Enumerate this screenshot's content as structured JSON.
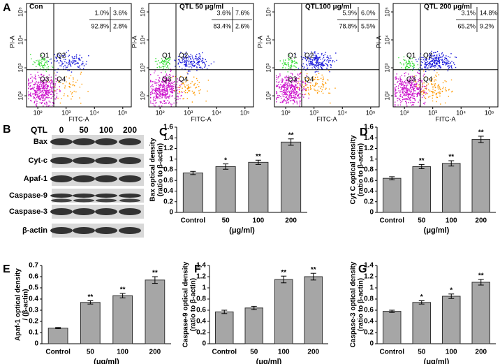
{
  "flow_cytometry": {
    "panel_label": "A",
    "x_label": "FITC-A",
    "y_label": "PI-A",
    "xscale": "log",
    "yscale": "log",
    "xlim": [
      40,
      200000
    ],
    "ylim": [
      40,
      200000
    ],
    "xticks": [
      {
        "value": 100,
        "label": "10²"
      },
      {
        "value": 1000,
        "label": "10³"
      },
      {
        "value": 10000,
        "label": "10⁴"
      },
      {
        "value": 100000,
        "label": "10⁵"
      }
    ],
    "yticks": [
      {
        "value": 100,
        "label": "10²"
      },
      {
        "value": 1000,
        "label": "10³"
      },
      {
        "value": 10000,
        "label": "10⁴"
      },
      {
        "value": 100000,
        "label": "10⁵"
      }
    ],
    "quadrant_names": [
      "Q1",
      "Q2",
      "Q3",
      "Q4"
    ],
    "panels": [
      {
        "title": "Con",
        "percentages": [
          "1.0%",
          "3.6%",
          "92.8%",
          "2.8%"
        ]
      },
      {
        "title": "QTL 50 μg/ml",
        "percentages": [
          "3.6%",
          "7.6%",
          "83.4%",
          "2.6%"
        ]
      },
      {
        "title": "QTL100 μg/ml",
        "percentages": [
          "5.9%",
          "6.0%",
          "78.8%",
          "5.5%"
        ]
      },
      {
        "title": "QTL 200 μg/ml",
        "percentages": [
          "3.1%",
          "14.8%",
          "65.2%",
          "9.2%"
        ]
      }
    ]
  },
  "western_blot": {
    "panel_label": "B",
    "header": "QTL",
    "doses": [
      "0",
      "50",
      "100",
      "200"
    ],
    "proteins": [
      "Bax",
      "Cyt-c",
      "Apaf-1",
      "Caspase-9",
      "Caspase-3",
      "β-actin"
    ]
  },
  "chart_data": [
    {
      "type": "bar",
      "panel_label": "C",
      "y_label": [
        "Bax optical density",
        "(ratio to β-actin)"
      ],
      "x_label": "(μg/ml)",
      "categories": [
        "Control",
        "50",
        "100",
        "200"
      ],
      "values": [
        0.74,
        0.86,
        0.94,
        1.32
      ],
      "errors": [
        0.03,
        0.05,
        0.04,
        0.06
      ],
      "significance": [
        null,
        "*",
        "**",
        "**"
      ],
      "color": "#a6a6a6",
      "ylim": [
        0,
        1.6
      ],
      "yticks": [
        0,
        0.2,
        0.4,
        0.6,
        0.8,
        1,
        1.2,
        1.4,
        1.6
      ]
    },
    {
      "type": "bar",
      "panel_label": "D",
      "y_label": [
        "Cyt C optical density",
        "(ratio to β-actin)"
      ],
      "x_label": "(μg/ml)",
      "categories": [
        "Control",
        "50",
        "100",
        "200"
      ],
      "values": [
        0.64,
        0.86,
        0.92,
        1.37
      ],
      "errors": [
        0.03,
        0.04,
        0.05,
        0.06
      ],
      "significance": [
        null,
        "**",
        "**",
        "**"
      ],
      "color": "#a6a6a6",
      "ylim": [
        0,
        1.6
      ],
      "yticks": [
        0,
        0.2,
        0.4,
        0.6,
        0.8,
        1,
        1.2,
        1.4,
        1.6
      ]
    },
    {
      "type": "bar",
      "panel_label": "E",
      "y_label": [
        "Apaf-1 optical density",
        "/ (β-actin)"
      ],
      "x_label": "(μg/ml)",
      "categories": [
        "Control",
        "50",
        "100",
        "200"
      ],
      "values": [
        0.14,
        0.37,
        0.43,
        0.57
      ],
      "errors": [
        0.005,
        0.015,
        0.02,
        0.03
      ],
      "significance": [
        null,
        "**",
        "**",
        "**"
      ],
      "color": "#a6a6a6",
      "ylim": [
        0,
        0.7
      ],
      "yticks": [
        0,
        0.1,
        0.2,
        0.3,
        0.4,
        0.5,
        0.6,
        0.7
      ]
    },
    {
      "type": "bar",
      "panel_label": "F",
      "y_label": [
        "Caspase-9 optical density",
        "(ratio to β-actin)"
      ],
      "x_label": "(μg/ml)",
      "categories": [
        "Control",
        "50",
        "100",
        "200"
      ],
      "values": [
        0.57,
        0.64,
        1.15,
        1.2
      ],
      "errors": [
        0.03,
        0.03,
        0.06,
        0.06
      ],
      "significance": [
        null,
        null,
        "**",
        "**"
      ],
      "color": "#a6a6a6",
      "ylim": [
        0,
        1.4
      ],
      "yticks": [
        0,
        0.2,
        0.4,
        0.6,
        0.8,
        1,
        1.2,
        1.4
      ]
    },
    {
      "type": "bar",
      "panel_label": "G",
      "y_label": [
        "Caspase-3 optical density",
        "(ratio to β-actin)"
      ],
      "x_label": "(μg/ml)",
      "categories": [
        "Control",
        "50",
        "100",
        "200"
      ],
      "values": [
        0.58,
        0.74,
        0.85,
        1.1
      ],
      "errors": [
        0.02,
        0.03,
        0.04,
        0.05
      ],
      "significance": [
        null,
        "*",
        "*",
        "**"
      ],
      "color": "#a6a6a6",
      "ylim": [
        0,
        1.4
      ],
      "yticks": [
        0,
        0.2,
        0.4,
        0.6,
        0.8,
        1,
        1.2,
        1.4
      ]
    }
  ]
}
